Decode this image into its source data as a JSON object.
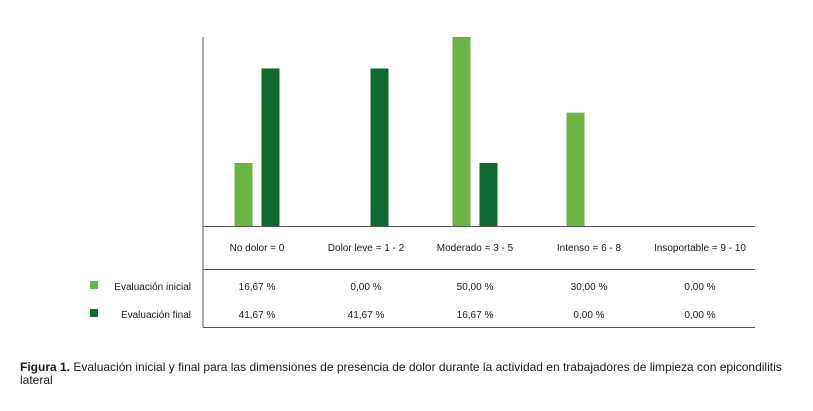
{
  "chart_data": {
    "type": "bar",
    "categories": [
      "No dolor = 0",
      "Dolor leve = 1 - 2",
      "Moderado = 3 - 5",
      "Intenso = 6 - 8",
      "Insoportable = 9 - 10"
    ],
    "series": [
      {
        "name": "Evaluación inicial",
        "values": [
          16.67,
          0.0,
          50.0,
          30.0,
          0.0
        ],
        "labels": [
          "16,67 %",
          "0,00 %",
          "50,00 %",
          "30,00 %",
          "0,00 %"
        ],
        "color": "#6ab344"
      },
      {
        "name": "Evaluación final",
        "values": [
          41.67,
          41.67,
          16.67,
          0.0,
          0.0
        ],
        "labels": [
          "41,67 %",
          "41,67 %",
          "16,67 %",
          "0,00 %",
          "0,00 %"
        ],
        "color": "#0e6a2e"
      }
    ],
    "ylim": [
      0,
      50
    ],
    "legend_position": "left-of-table"
  },
  "caption": {
    "label": "Figura 1.",
    "text": " Evaluación inicial y final para las dimensiones de presencia de dolor durante la actividad en trabajadores de limpieza con epicondilitis lateral"
  }
}
